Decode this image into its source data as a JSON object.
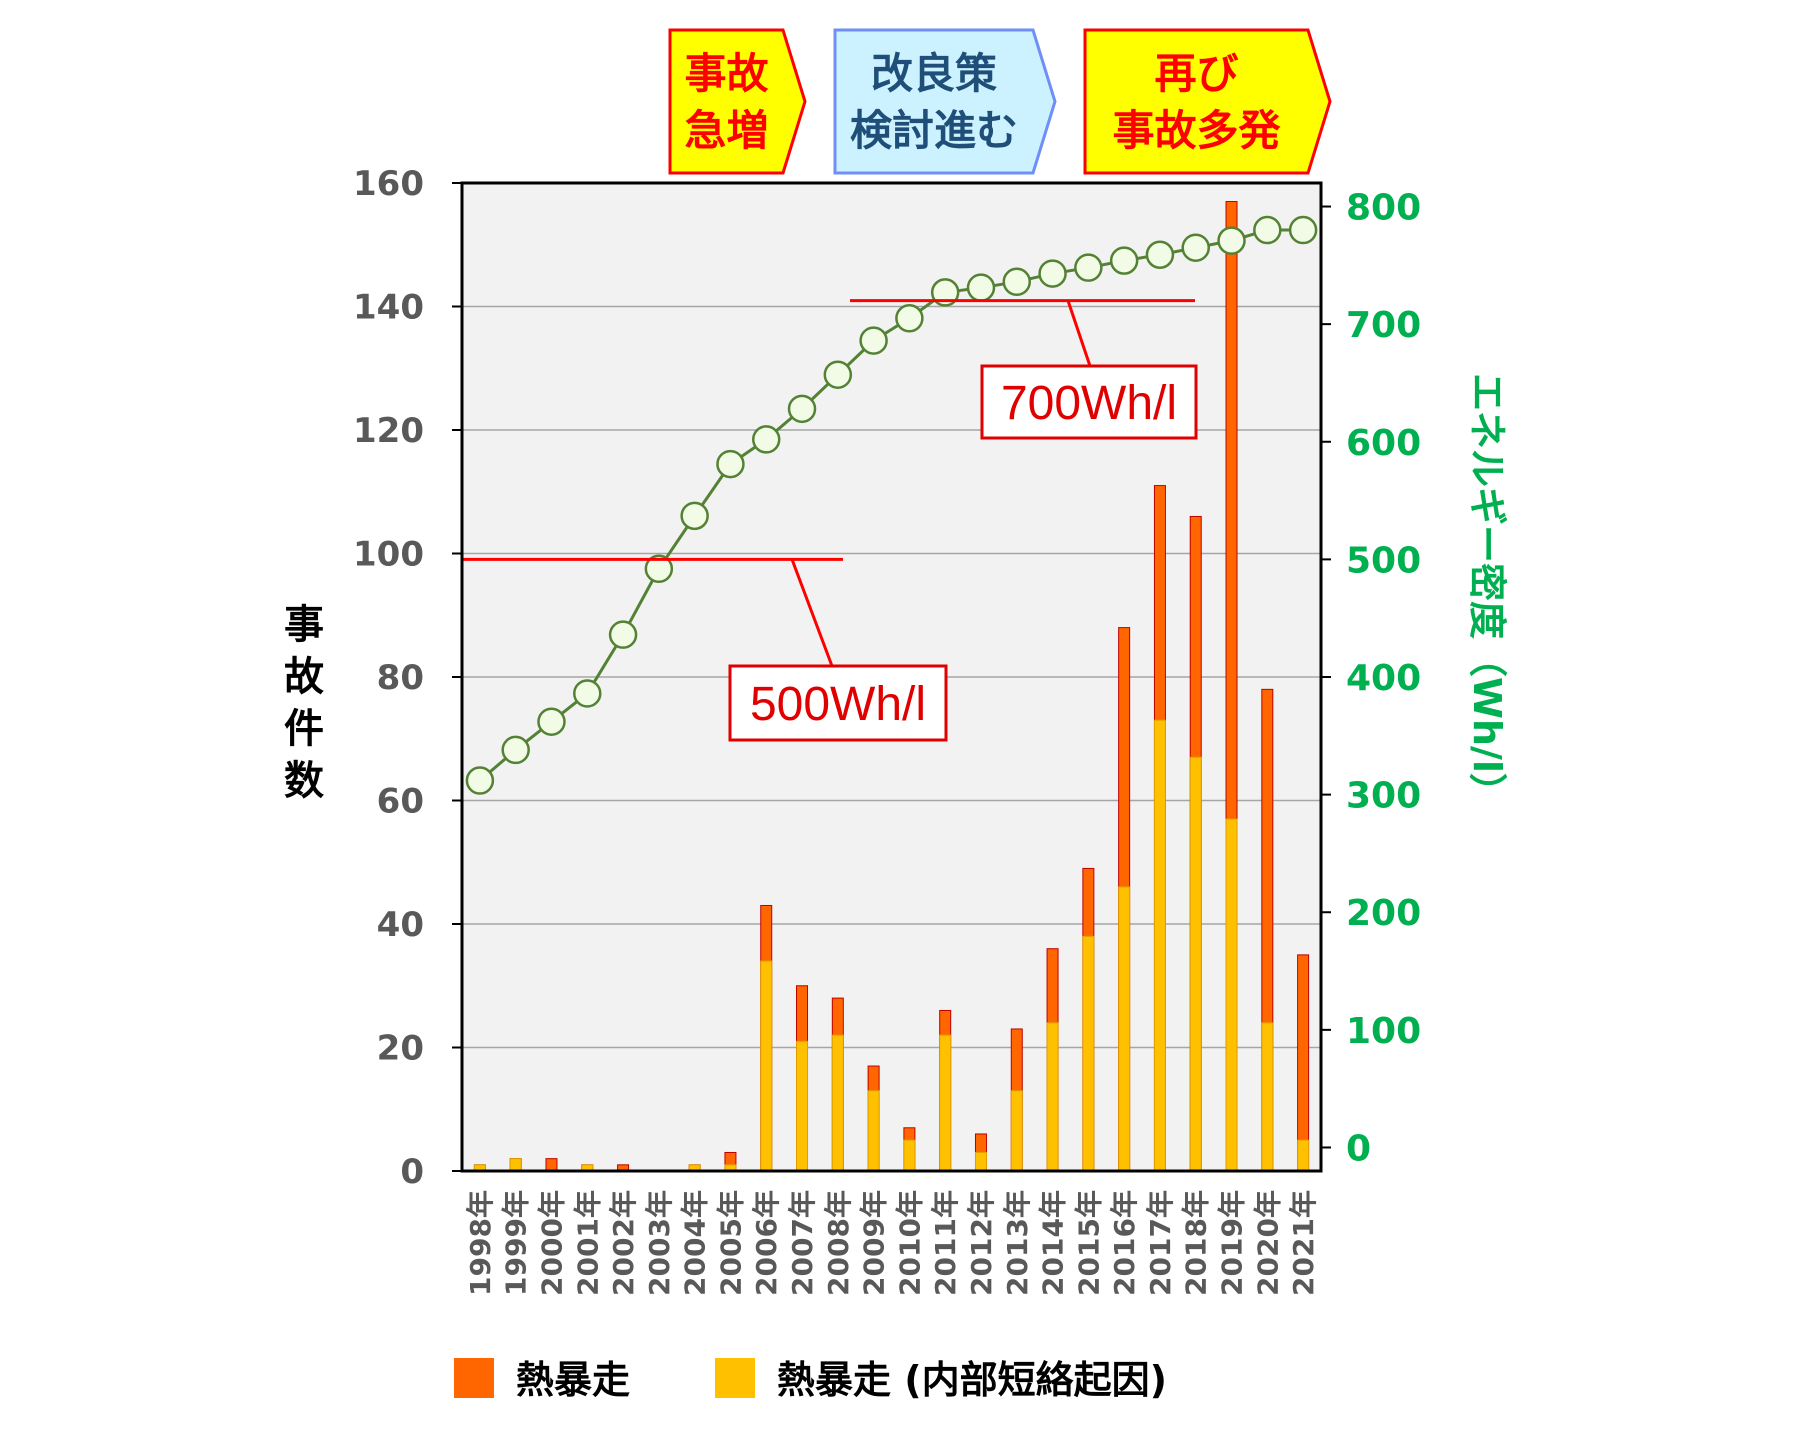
{
  "phases": [
    {
      "line1": "事故",
      "line2": "急増",
      "fill": "#ffff00",
      "stroke": "#ff0000",
      "text_color": "#ff0000"
    },
    {
      "line1": "改良策",
      "line2": "検討進む",
      "fill": "#ccf2ff",
      "stroke": "#6f8ff7",
      "text_color": "#1f4e79"
    },
    {
      "line1": "再び",
      "line2": "事故多発",
      "fill": "#ffff00",
      "stroke": "#ff0000",
      "text_color": "#ff0000"
    }
  ],
  "callouts": [
    {
      "text": "500Wh/l",
      "energy_level": 500
    },
    {
      "text": "700Wh/l",
      "energy_level": 720
    }
  ],
  "legend": [
    {
      "label": "熱暴走",
      "color": "#ff6600"
    },
    {
      "label": "熱暴走 (内部短絡起因)",
      "color": "#ffc000"
    }
  ],
  "chart_data": {
    "type": "bar",
    "categories": [
      "1998年",
      "1999年",
      "2000年",
      "2001年",
      "2002年",
      "2003年",
      "2004年",
      "2005年",
      "2006年",
      "2007年",
      "2008年",
      "2009年",
      "2010年",
      "2011年",
      "2012年",
      "2013年",
      "2014年",
      "2015年",
      "2016年",
      "2017年",
      "2018年",
      "2019年",
      "2020年",
      "2021年"
    ],
    "ylabel": "事故件数",
    "ylim": [
      0,
      160
    ],
    "yticks": [
      "0",
      "20",
      "40",
      "60",
      "80",
      "100",
      "120",
      "140",
      "160"
    ],
    "y2label": "エネルギー密度（Wh/l）",
    "y2lim": [
      -20,
      820
    ],
    "y2ticks": [
      "0",
      "100",
      "200",
      "300",
      "400",
      "500",
      "600",
      "700",
      "800"
    ],
    "grid": true,
    "legend_position": "bottom",
    "series": [
      {
        "name": "熱暴走",
        "color": "#ff6600",
        "axis": "left",
        "values": [
          1,
          2,
          2,
          1,
          1,
          0,
          1,
          3,
          43,
          30,
          28,
          17,
          7,
          26,
          6,
          23,
          36,
          49,
          88,
          111,
          106,
          157,
          78,
          35
        ]
      },
      {
        "name": "熱暴走 (内部短絡起因)",
        "color": "#ffc000",
        "axis": "left",
        "values": [
          1,
          2,
          0,
          1,
          0,
          0,
          1,
          1,
          34,
          21,
          22,
          13,
          5,
          22,
          3,
          13,
          24,
          38,
          46,
          73,
          67,
          57,
          24,
          5
        ]
      },
      {
        "type": "line",
        "axis": "right",
        "color": "#548235",
        "values": [
          312,
          338,
          362,
          386,
          436,
          492,
          537,
          581,
          602,
          628,
          657,
          686,
          705,
          727,
          731,
          736,
          743,
          748,
          754,
          759,
          765,
          771,
          780,
          780
        ]
      }
    ]
  }
}
